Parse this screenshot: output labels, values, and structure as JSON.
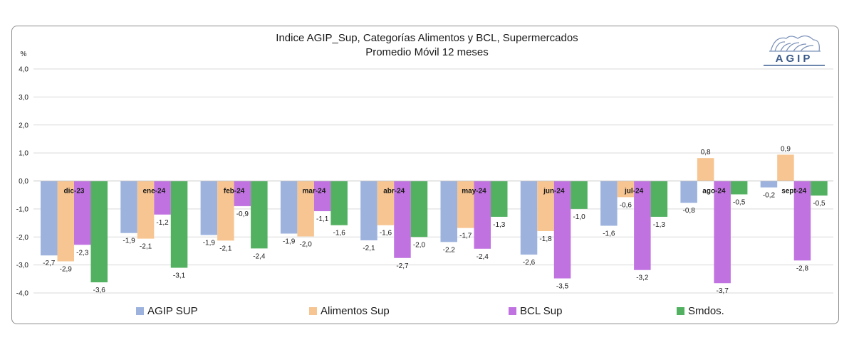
{
  "chart_data": {
    "type": "bar",
    "title": "Indice AGIP_Sup, Categorías Alimentos y BCL, Supermercados",
    "subtitle": "Promedio Móvil 12 meses",
    "ylabel": "%",
    "ylim": [
      -4,
      4
    ],
    "yticks": [
      "4,0",
      "3,0",
      "2,0",
      "1,0",
      "0,0",
      "-1,0",
      "-2,0",
      "-3,0",
      "-4,0"
    ],
    "grid": true,
    "legend_position": "bottom",
    "categories": [
      "dic-23",
      "ene-24",
      "feb-24",
      "mar-24",
      "abr-24",
      "may-24",
      "jun-24",
      "jul-24",
      "ago-24",
      "sept-24"
    ],
    "series": [
      {
        "name": "AGIP SUP",
        "color": "#9db3de",
        "values": [
          -2.66,
          -1.86,
          -1.93,
          -1.88,
          -2.12,
          -2.18,
          -2.63,
          -1.6,
          -0.78,
          -0.23
        ],
        "labels": [
          "-2,7",
          "-1,9",
          "-1,9",
          "-1,9",
          "-2,1",
          "-2,2",
          "-2,6",
          "-1,6",
          "-0,8",
          "-0,2"
        ]
      },
      {
        "name": "Alimentos Sup",
        "color": "#f7c591",
        "values": [
          -2.87,
          -2.06,
          -2.13,
          -1.98,
          -1.58,
          -1.68,
          -1.79,
          -0.58,
          0.82,
          0.94
        ],
        "labels": [
          "-2,9",
          "-2,1",
          "-2,1",
          "-2,0",
          "-1,6",
          "-1,7",
          "-1,8",
          "-0,6",
          "0,8",
          "0,9"
        ]
      },
      {
        "name": "BCL Sup",
        "color": "#c073e0",
        "values": [
          -2.28,
          -1.2,
          -0.9,
          -1.08,
          -2.75,
          -2.42,
          -3.48,
          -3.18,
          -3.65,
          -2.84
        ],
        "labels": [
          "-2,3",
          "-1,2",
          "-0,9",
          "-1,1",
          "-2,7",
          "-2,4",
          "-3,5",
          "-3,2",
          "-3,7",
          "-2,8"
        ]
      },
      {
        "name": "Smdos.",
        "color": "#52b160",
        "values": [
          -3.62,
          -3.1,
          -2.41,
          -1.58,
          -2.0,
          -1.28,
          -1.0,
          -1.28,
          -0.48,
          -0.52
        ],
        "labels": [
          "-3,6",
          "-3,1",
          "-2,4",
          "-1,6",
          "-2,0",
          "-1,3",
          "-1,0",
          "-1,3",
          "-0,5",
          "-0,5"
        ]
      }
    ]
  },
  "logo": {
    "text": "AGIP"
  }
}
